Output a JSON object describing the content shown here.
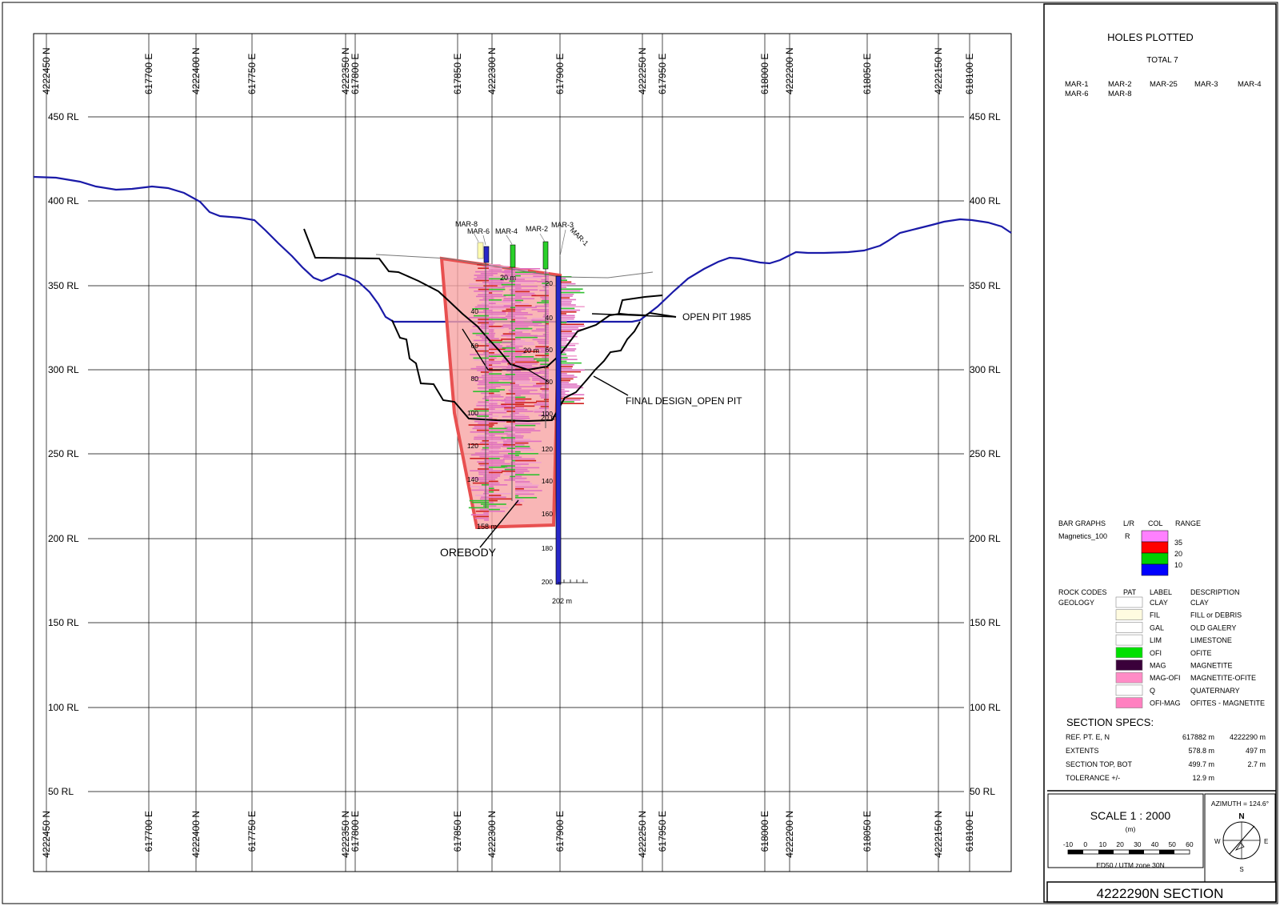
{
  "section": {
    "grid_e_labels": [
      "617700 E",
      "617750 E",
      "617800 E",
      "617850 E",
      "617900 E",
      "617950 E",
      "618000 E",
      "618050 E",
      "618100 E"
    ],
    "grid_n_labels": [
      "4222400 N",
      "4222350 N",
      "4222300 N",
      "4222250 N",
      "4222200 N",
      "4222150 N"
    ],
    "left_corner_label_top": "4222450 N",
    "left_corner_label_bottom": "4222450 N",
    "rl_labels": [
      "450 RL",
      "400 RL",
      "350 RL",
      "300 RL",
      "250 RL",
      "200 RL",
      "150 RL",
      "100 RL",
      "50 RL"
    ]
  },
  "annotations": {
    "open_pit_1985": "OPEN PIT 1985",
    "final_design": "FINAL DESIGN_OPEN PIT",
    "orebody": "OREBODY"
  },
  "holes": [
    {
      "name": "MAR-8"
    },
    {
      "name": "MAR-6"
    },
    {
      "name": "MAR-4"
    },
    {
      "name": "MAR-2"
    },
    {
      "name": "MAR-3"
    },
    {
      "name": "MAR-1"
    }
  ],
  "downhole_labels": [
    "20",
    "40",
    "60",
    "80",
    "100",
    "120",
    "140",
    "160",
    "180",
    "200"
  ],
  "downhole_end_label": "202 m",
  "downhole_other_end": "158 m",
  "depth_marks": [
    "20 m",
    "20 m",
    "20 m"
  ],
  "holes_plotted": {
    "title": "HOLES PLOTTED",
    "total": "TOTAL 7",
    "list": [
      "MAR-1",
      "MAR-2",
      "MAR-25",
      "MAR-3",
      "MAR-4",
      "MAR-6",
      "MAR-8"
    ]
  },
  "bar_graphs": {
    "header": [
      "BAR GRAPHS",
      "L/R",
      "COL",
      "RANGE"
    ],
    "row": {
      "name": "Magnetics_100",
      "lr": "R"
    },
    "ranges": [
      "35",
      "20",
      "10"
    ],
    "colors": [
      "#ff80ff",
      "#ff0000",
      "#00d000",
      "#0000ff"
    ]
  },
  "rock_codes": {
    "header": [
      "ROCK CODES",
      "PAT",
      "LABEL",
      "DESCRIPTION"
    ],
    "group": "GEOLOGY",
    "items": [
      {
        "label": "CLAY",
        "desc": "CLAY",
        "color": "#ffffff"
      },
      {
        "label": "FIL",
        "desc": "FILL or DEBRIS",
        "color": "#fffbe0"
      },
      {
        "label": "GAL",
        "desc": "OLD GALERY",
        "color": "#ffffff"
      },
      {
        "label": "LIM",
        "desc": "LIMESTONE",
        "color": "#ffffff"
      },
      {
        "label": "OFI",
        "desc": "OFITE",
        "color": "#00e000"
      },
      {
        "label": "MAG",
        "desc": "MAGNETITE",
        "color": "#3a003a"
      },
      {
        "label": "MAG-OFI",
        "desc": "MAGNETITE-OFITE",
        "color": "#ff8cc6"
      },
      {
        "label": "Q",
        "desc": "QUATERNARY",
        "color": "#ffffff"
      },
      {
        "label": "OFI-MAG",
        "desc": "OFITES - MAGNETITE",
        "color": "#ff80c0"
      }
    ]
  },
  "section_specs": {
    "title": "SECTION  SPECS:",
    "rows": [
      {
        "label": "REF. PT.  E, N",
        "v1": "617882 m",
        "v2": "4222290 m"
      },
      {
        "label": "EXTENTS",
        "v1": "578.8 m",
        "v2": "497 m"
      },
      {
        "label": "SECTION TOP, BOT",
        "v1": "499.7 m",
        "v2": "2.7 m"
      },
      {
        "label": "TOLERANCE  +/-",
        "v1": "12.9 m",
        "v2": ""
      }
    ]
  },
  "scale": {
    "title": "SCALE  1 : 2000",
    "unit": "(m)",
    "ticks": [
      "-10",
      "0",
      "10",
      "20",
      "30",
      "40",
      "50",
      "60"
    ],
    "datum": "ED50 / UTM zone 30N"
  },
  "azimuth": {
    "label": "AZIMUTH = 124.6°",
    "n": "N",
    "s": "S",
    "e": "E",
    "w": "W"
  },
  "footer_title": "4222290N  SECTION"
}
